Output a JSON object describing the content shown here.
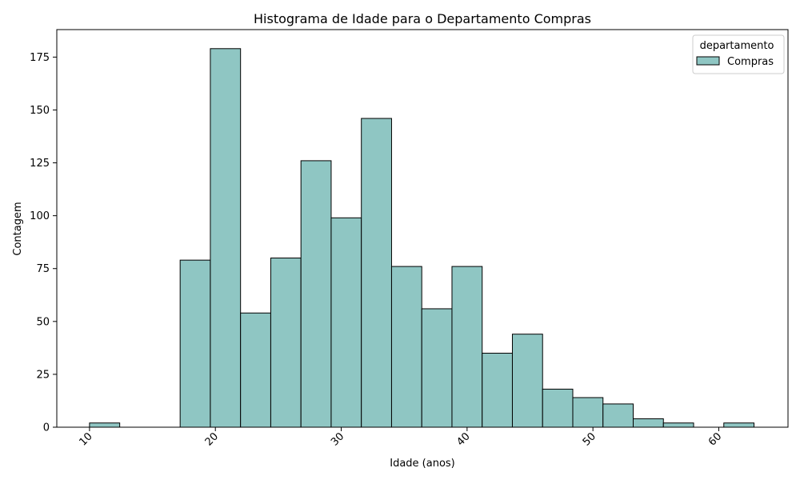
{
  "chart_data": {
    "type": "bar",
    "title": "Histograma de Idade para o Departamento Compras",
    "xlabel": "Idade (anos)",
    "ylabel": "Contagem",
    "xlim": [
      7.4,
      65.5
    ],
    "ylim": [
      0,
      188
    ],
    "xticks": [
      10,
      20,
      30,
      40,
      50,
      60
    ],
    "yticks": [
      0,
      25,
      50,
      75,
      100,
      125,
      150,
      175
    ],
    "grid": false,
    "legend": {
      "title": "departamento",
      "placement": "top-right",
      "entries": [
        "Compras"
      ]
    },
    "series": [
      {
        "name": "Compras",
        "color": "#8fc6c3",
        "edge_color": "#000000",
        "bins": [
          {
            "x0": 10.0,
            "x1": 12.4,
            "count": 2
          },
          {
            "x0": 12.4,
            "x1": 14.8,
            "count": 0
          },
          {
            "x0": 14.8,
            "x1": 17.2,
            "count": 0
          },
          {
            "x0": 17.2,
            "x1": 19.6,
            "count": 79
          },
          {
            "x0": 19.6,
            "x1": 22.0,
            "count": 179
          },
          {
            "x0": 22.0,
            "x1": 24.4,
            "count": 54
          },
          {
            "x0": 24.4,
            "x1": 26.8,
            "count": 80
          },
          {
            "x0": 26.8,
            "x1": 29.2,
            "count": 126
          },
          {
            "x0": 29.2,
            "x1": 31.6,
            "count": 99
          },
          {
            "x0": 31.6,
            "x1": 34.0,
            "count": 146
          },
          {
            "x0": 34.0,
            "x1": 36.4,
            "count": 76
          },
          {
            "x0": 36.4,
            "x1": 38.8,
            "count": 56
          },
          {
            "x0": 38.8,
            "x1": 41.2,
            "count": 76
          },
          {
            "x0": 41.2,
            "x1": 43.6,
            "count": 35
          },
          {
            "x0": 43.6,
            "x1": 46.0,
            "count": 44
          },
          {
            "x0": 46.0,
            "x1": 48.4,
            "count": 18
          },
          {
            "x0": 48.4,
            "x1": 50.8,
            "count": 14
          },
          {
            "x0": 50.8,
            "x1": 53.2,
            "count": 11
          },
          {
            "x0": 53.2,
            "x1": 55.6,
            "count": 4
          },
          {
            "x0": 55.6,
            "x1": 58.0,
            "count": 2
          },
          {
            "x0": 58.0,
            "x1": 60.4,
            "count": 0
          },
          {
            "x0": 60.4,
            "x1": 62.8,
            "count": 2
          }
        ]
      }
    ]
  }
}
